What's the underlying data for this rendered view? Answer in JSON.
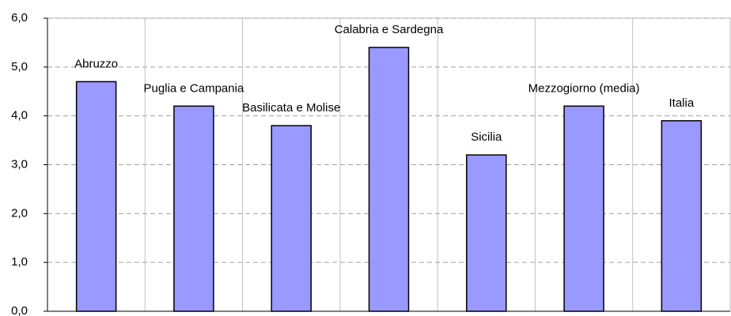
{
  "chart_data": {
    "type": "bar",
    "categories": [
      "Abruzzo",
      "Puglia e Campania",
      "Basilicata e Molise",
      "Calabria e Sardegna",
      "Sicilia",
      "Mezzogiorno (media)",
      "Italia"
    ],
    "values": [
      4.7,
      4.2,
      3.8,
      5.4,
      3.2,
      4.2,
      3.9
    ],
    "color": "#9999ff",
    "ylim": [
      0,
      6
    ],
    "yticks": [
      {
        "value": 0,
        "label": "0,0"
      },
      {
        "value": 1,
        "label": "1,0"
      },
      {
        "value": 2,
        "label": "2,0"
      },
      {
        "value": 3,
        "label": "3,0"
      },
      {
        "value": 4,
        "label": "4,0"
      },
      {
        "value": 5,
        "label": "5,0"
      },
      {
        "value": 6,
        "label": "6,0"
      }
    ],
    "grid": true
  }
}
